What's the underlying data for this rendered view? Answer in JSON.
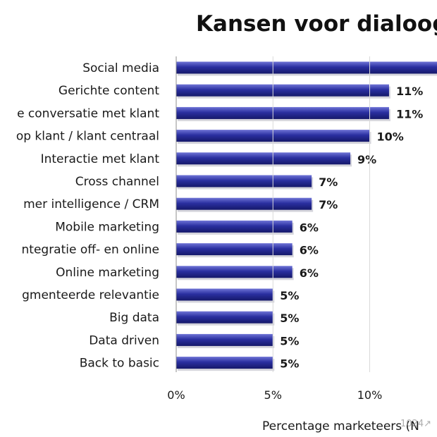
{
  "chart_data": {
    "type": "bar",
    "orientation": "horizontal",
    "title": "Kansen voor dialoogm",
    "xlabel": "Percentage marketeers (N",
    "xlim": [
      0,
      0.135
    ],
    "x_ticks": [
      "0%",
      "5%",
      "10%"
    ],
    "x_tick_values": [
      0,
      0.05,
      0.1
    ],
    "grid": false,
    "categories": [
      "Social media",
      "Gerichte content",
      "e conversatie met klant",
      "op klant / klant centraal",
      "Interactie met klant",
      "Cross channel",
      "mer intelligence / CRM",
      "Mobile marketing",
      "ntegratie off- en online",
      "Online marketing",
      "gmenteerde relevantie",
      "Big data",
      "Data driven",
      "Back to basic"
    ],
    "values": [
      0.14,
      0.11,
      0.11,
      0.1,
      0.09,
      0.07,
      0.07,
      0.06,
      0.06,
      0.06,
      0.05,
      0.05,
      0.05,
      0.05
    ],
    "value_labels": [
      "",
      "11%",
      "11%",
      "10%",
      "9%",
      "7%",
      "7%",
      "6%",
      "6%",
      "6%",
      "5%",
      "5%",
      "5%",
      "5%"
    ],
    "bar_color": "#262a96",
    "watermark": "1024↗"
  }
}
